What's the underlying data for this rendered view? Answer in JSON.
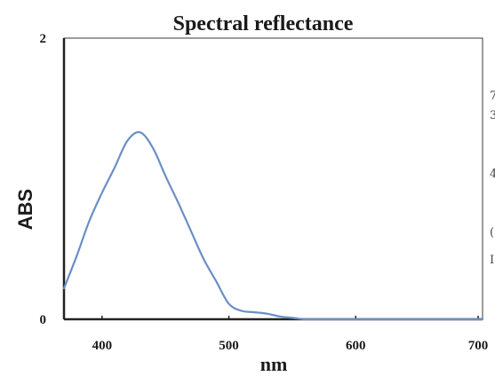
{
  "chart_data": {
    "type": "line",
    "title": "Spectral reflectance",
    "xlabel": "nm",
    "ylabel": "ABS",
    "xlim": [
      370,
      700
    ],
    "ylim": [
      0,
      2
    ],
    "x_ticks": [
      "400",
      "500",
      "600",
      "700"
    ],
    "y_ticks": [
      "0",
      "2"
    ],
    "grid": false,
    "series": [
      {
        "color": "#6a8fc5",
        "x": [
          370,
          380,
          390,
          400,
          410,
          420,
          430,
          440,
          450,
          460,
          470,
          480,
          490,
          500,
          510,
          520,
          530,
          540,
          550,
          560,
          570,
          600,
          650,
          700
        ],
        "y": [
          0.22,
          0.45,
          0.7,
          0.9,
          1.08,
          1.27,
          1.33,
          1.22,
          1.02,
          0.83,
          0.63,
          0.43,
          0.27,
          0.11,
          0.06,
          0.05,
          0.04,
          0.02,
          0.01,
          0.0,
          0.0,
          0.0,
          0.0,
          0.0
        ]
      }
    ]
  },
  "right_edge_fragments": [
    "7",
    "3",
    "4",
    "(",
    "I"
  ]
}
